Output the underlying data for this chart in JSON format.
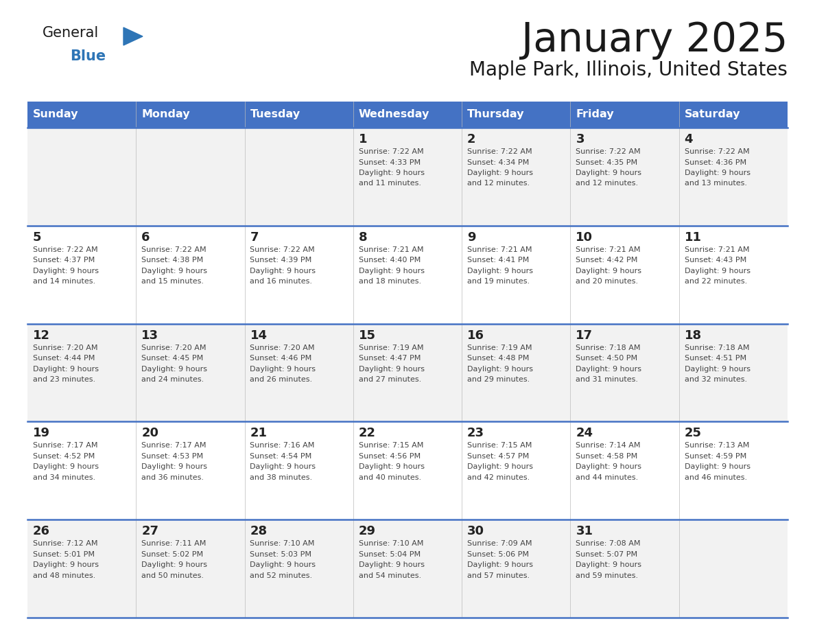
{
  "title": "January 2025",
  "subtitle": "Maple Park, Illinois, United States",
  "days_of_week": [
    "Sunday",
    "Monday",
    "Tuesday",
    "Wednesday",
    "Thursday",
    "Friday",
    "Saturday"
  ],
  "header_bg": "#4472C4",
  "header_text": "#FFFFFF",
  "cell_bg_odd": "#F2F2F2",
  "cell_bg_even": "#FFFFFF",
  "row_line_color": "#4472C4",
  "cell_text_color": "#444444",
  "day_num_color": "#222222",
  "calendar": [
    [
      null,
      null,
      null,
      {
        "day": 1,
        "sunrise": "7:22 AM",
        "sunset": "4:33 PM",
        "daylight": "9 hours and 11 minutes"
      },
      {
        "day": 2,
        "sunrise": "7:22 AM",
        "sunset": "4:34 PM",
        "daylight": "9 hours and 12 minutes"
      },
      {
        "day": 3,
        "sunrise": "7:22 AM",
        "sunset": "4:35 PM",
        "daylight": "9 hours and 12 minutes"
      },
      {
        "day": 4,
        "sunrise": "7:22 AM",
        "sunset": "4:36 PM",
        "daylight": "9 hours and 13 minutes"
      }
    ],
    [
      {
        "day": 5,
        "sunrise": "7:22 AM",
        "sunset": "4:37 PM",
        "daylight": "9 hours and 14 minutes"
      },
      {
        "day": 6,
        "sunrise": "7:22 AM",
        "sunset": "4:38 PM",
        "daylight": "9 hours and 15 minutes"
      },
      {
        "day": 7,
        "sunrise": "7:22 AM",
        "sunset": "4:39 PM",
        "daylight": "9 hours and 16 minutes"
      },
      {
        "day": 8,
        "sunrise": "7:21 AM",
        "sunset": "4:40 PM",
        "daylight": "9 hours and 18 minutes"
      },
      {
        "day": 9,
        "sunrise": "7:21 AM",
        "sunset": "4:41 PM",
        "daylight": "9 hours and 19 minutes"
      },
      {
        "day": 10,
        "sunrise": "7:21 AM",
        "sunset": "4:42 PM",
        "daylight": "9 hours and 20 minutes"
      },
      {
        "day": 11,
        "sunrise": "7:21 AM",
        "sunset": "4:43 PM",
        "daylight": "9 hours and 22 minutes"
      }
    ],
    [
      {
        "day": 12,
        "sunrise": "7:20 AM",
        "sunset": "4:44 PM",
        "daylight": "9 hours and 23 minutes"
      },
      {
        "day": 13,
        "sunrise": "7:20 AM",
        "sunset": "4:45 PM",
        "daylight": "9 hours and 24 minutes"
      },
      {
        "day": 14,
        "sunrise": "7:20 AM",
        "sunset": "4:46 PM",
        "daylight": "9 hours and 26 minutes"
      },
      {
        "day": 15,
        "sunrise": "7:19 AM",
        "sunset": "4:47 PM",
        "daylight": "9 hours and 27 minutes"
      },
      {
        "day": 16,
        "sunrise": "7:19 AM",
        "sunset": "4:48 PM",
        "daylight": "9 hours and 29 minutes"
      },
      {
        "day": 17,
        "sunrise": "7:18 AM",
        "sunset": "4:50 PM",
        "daylight": "9 hours and 31 minutes"
      },
      {
        "day": 18,
        "sunrise": "7:18 AM",
        "sunset": "4:51 PM",
        "daylight": "9 hours and 32 minutes"
      }
    ],
    [
      {
        "day": 19,
        "sunrise": "7:17 AM",
        "sunset": "4:52 PM",
        "daylight": "9 hours and 34 minutes"
      },
      {
        "day": 20,
        "sunrise": "7:17 AM",
        "sunset": "4:53 PM",
        "daylight": "9 hours and 36 minutes"
      },
      {
        "day": 21,
        "sunrise": "7:16 AM",
        "sunset": "4:54 PM",
        "daylight": "9 hours and 38 minutes"
      },
      {
        "day": 22,
        "sunrise": "7:15 AM",
        "sunset": "4:56 PM",
        "daylight": "9 hours and 40 minutes"
      },
      {
        "day": 23,
        "sunrise": "7:15 AM",
        "sunset": "4:57 PM",
        "daylight": "9 hours and 42 minutes"
      },
      {
        "day": 24,
        "sunrise": "7:14 AM",
        "sunset": "4:58 PM",
        "daylight": "9 hours and 44 minutes"
      },
      {
        "day": 25,
        "sunrise": "7:13 AM",
        "sunset": "4:59 PM",
        "daylight": "9 hours and 46 minutes"
      }
    ],
    [
      {
        "day": 26,
        "sunrise": "7:12 AM",
        "sunset": "5:01 PM",
        "daylight": "9 hours and 48 minutes"
      },
      {
        "day": 27,
        "sunrise": "7:11 AM",
        "sunset": "5:02 PM",
        "daylight": "9 hours and 50 minutes"
      },
      {
        "day": 28,
        "sunrise": "7:10 AM",
        "sunset": "5:03 PM",
        "daylight": "9 hours and 52 minutes"
      },
      {
        "day": 29,
        "sunrise": "7:10 AM",
        "sunset": "5:04 PM",
        "daylight": "9 hours and 54 minutes"
      },
      {
        "day": 30,
        "sunrise": "7:09 AM",
        "sunset": "5:06 PM",
        "daylight": "9 hours and 57 minutes"
      },
      {
        "day": 31,
        "sunrise": "7:08 AM",
        "sunset": "5:07 PM",
        "daylight": "9 hours and 59 minutes"
      },
      null
    ]
  ],
  "logo_color_general": "#1a1a1a",
  "logo_color_blue": "#2E75B6",
  "logo_triangle_color": "#2E75B6"
}
